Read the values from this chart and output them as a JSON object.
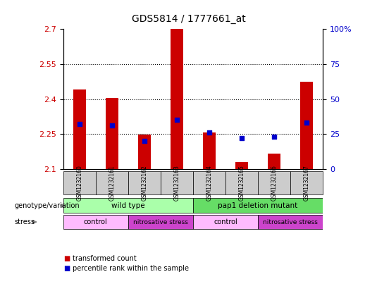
{
  "title": "GDS5814 / 1777661_at",
  "samples": [
    "GSM1232160",
    "GSM1232161",
    "GSM1232162",
    "GSM1232163",
    "GSM1232164",
    "GSM1232165",
    "GSM1232166",
    "GSM1232167"
  ],
  "bar_values": [
    2.44,
    2.405,
    2.248,
    2.7,
    2.258,
    2.13,
    2.165,
    2.475
  ],
  "percentile_values": [
    32,
    31,
    20,
    35,
    26,
    22,
    23,
    33
  ],
  "ylim_left": [
    2.1,
    2.7
  ],
  "ylim_right": [
    0,
    100
  ],
  "yticks_left": [
    2.1,
    2.25,
    2.4,
    2.55,
    2.7
  ],
  "yticks_right": [
    0,
    25,
    50,
    75,
    100
  ],
  "bar_color": "#cc0000",
  "dot_color": "#0000cc",
  "bar_width": 0.4,
  "bg_color": "#ffffff",
  "genotype_color_1": "#aaffaa",
  "genotype_color_2": "#66dd66",
  "stress_color_control": "#ffbbff",
  "stress_color_nitro": "#cc44cc",
  "sample_box_color": "#cccccc",
  "label_genotype": "genotype/variation",
  "label_stress": "stress",
  "legend_red_label": "transformed count",
  "legend_blue_label": "percentile rank within the sample",
  "ylabel_left_color": "#cc0000",
  "ylabel_right_color": "#0000cc"
}
